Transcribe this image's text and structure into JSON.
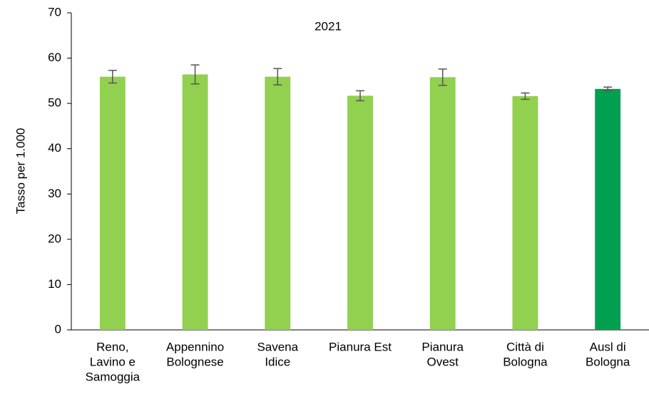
{
  "chart_data": {
    "type": "bar",
    "title": "2021",
    "y_label": "Tasso per 1.000",
    "categories": [
      [
        "Reno,",
        "Lavino e",
        "Samoggia"
      ],
      [
        "Appennino",
        "Bolognese"
      ],
      [
        "Savena",
        "Idice"
      ],
      [
        "Pianura Est"
      ],
      [
        "Pianura",
        "Ovest"
      ],
      [
        "Città di",
        "Bologna"
      ],
      [
        "Ausl di",
        "Bologna"
      ]
    ],
    "values": [
      55.9,
      56.4,
      55.9,
      51.7,
      55.8,
      51.6,
      53.2
    ],
    "errors": [
      1.4,
      2.1,
      1.8,
      1.1,
      1.8,
      0.7,
      0.4
    ],
    "colors": [
      "#92d050",
      "#92d050",
      "#92d050",
      "#92d050",
      "#92d050",
      "#92d050",
      "#00a050"
    ],
    "ylim": [
      0,
      70
    ],
    "yticks": [
      0,
      10,
      20,
      30,
      40,
      50,
      60,
      70
    ],
    "grid": false
  }
}
